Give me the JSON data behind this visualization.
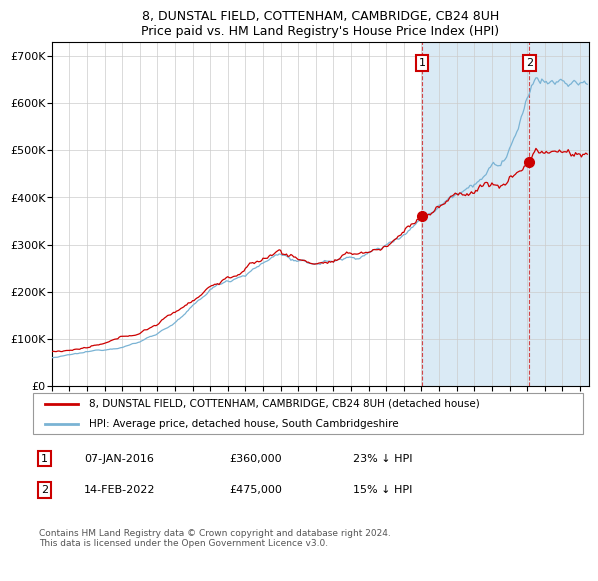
{
  "title": "8, DUNSTAL FIELD, COTTENHAM, CAMBRIDGE, CB24 8UH",
  "subtitle": "Price paid vs. HM Land Registry's House Price Index (HPI)",
  "ylabel_ticks": [
    "£0",
    "£100K",
    "£200K",
    "£300K",
    "£400K",
    "£500K",
    "£600K",
    "£700K"
  ],
  "ytick_vals": [
    0,
    100000,
    200000,
    300000,
    400000,
    500000,
    600000,
    700000
  ],
  "ylim": [
    0,
    730000
  ],
  "xlim_start": 1995.0,
  "xlim_end": 2025.5,
  "hpi_color": "#7ab3d4",
  "price_color": "#cc0000",
  "marker1_x": 2016.03,
  "marker1_y": 360000,
  "marker2_x": 2022.12,
  "marker2_y": 475000,
  "legend_line1": "8, DUNSTAL FIELD, COTTENHAM, CAMBRIDGE, CB24 8UH (detached house)",
  "legend_line2": "HPI: Average price, detached house, South Cambridgeshire",
  "footnote": "Contains HM Land Registry data © Crown copyright and database right 2024.\nThis data is licensed under the Open Government Licence v3.0.",
  "bg_highlight_color": "#daeaf5",
  "vline_color": "#cc0000"
}
